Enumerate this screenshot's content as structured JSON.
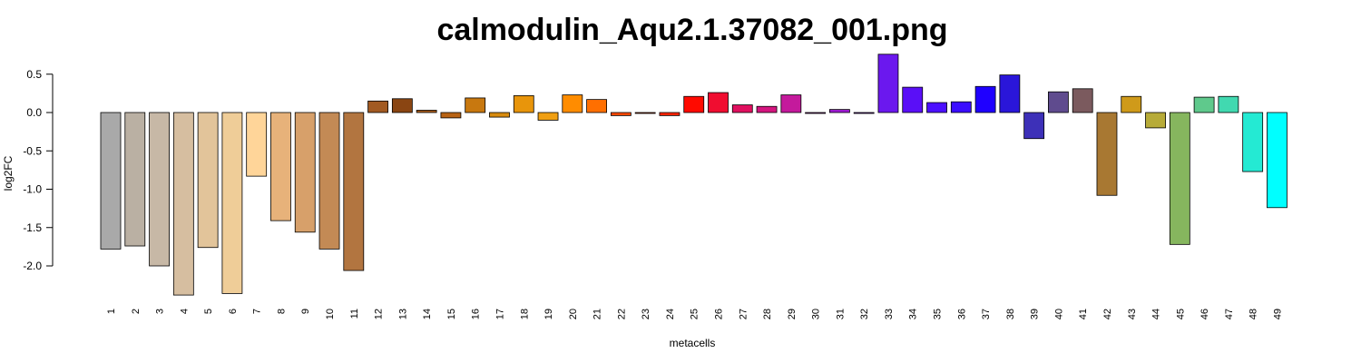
{
  "chart_data": {
    "type": "bar",
    "title": "calmodulin_Aqu2.1.37082_001.png",
    "xlabel": "metacells",
    "ylabel": "log2FC",
    "yticks": [
      "0.5",
      "0.0",
      "-0.5",
      "-1.0",
      "-1.5",
      "-2.0"
    ],
    "ytick_values": [
      0.5,
      0.0,
      -0.5,
      -1.0,
      -1.5,
      -2.0
    ],
    "ylim": [
      -2.4,
      0.77
    ],
    "grid": false,
    "categories": [
      "1",
      "2",
      "3",
      "4",
      "5",
      "6",
      "7",
      "8",
      "9",
      "10",
      "11",
      "12",
      "13",
      "14",
      "15",
      "16",
      "17",
      "18",
      "19",
      "20",
      "21",
      "22",
      "23",
      "24",
      "25",
      "26",
      "27",
      "28",
      "29",
      "30",
      "31",
      "32",
      "33",
      "34",
      "35",
      "36",
      "37",
      "38",
      "39",
      "40",
      "41",
      "42",
      "43",
      "44",
      "45",
      "46",
      "47",
      "48",
      "49"
    ],
    "values": [
      -1.78,
      -1.74,
      -2.0,
      -2.38,
      -1.76,
      -2.36,
      -0.83,
      -1.41,
      -1.56,
      -1.78,
      -2.06,
      0.15,
      0.18,
      0.03,
      -0.07,
      0.19,
      -0.06,
      0.22,
      -0.1,
      0.23,
      0.17,
      -0.04,
      -0.01,
      -0.04,
      0.21,
      0.26,
      0.1,
      0.08,
      0.23,
      -0.01,
      0.04,
      -0.01,
      0.76,
      0.33,
      0.13,
      0.14,
      0.34,
      0.49,
      -0.34,
      0.27,
      0.31,
      -1.08,
      0.21,
      -0.2,
      -1.72,
      0.2,
      0.21,
      -0.77,
      -1.24
    ],
    "colors": [
      "#a9a9a9",
      "#bab0a3",
      "#c7b8a6",
      "#d6bea0",
      "#e2c49a",
      "#efcd98",
      "#ffd599",
      "#e7b27a",
      "#d7a06a",
      "#c38a55",
      "#b27540",
      "#a25a22",
      "#8a4512",
      "#a85c1c",
      "#b86314",
      "#c8780f",
      "#d78b0f",
      "#e8950b",
      "#f09f12",
      "#ff8c00",
      "#ff6f00",
      "#ff4a00",
      "#f23800",
      "#ff2400",
      "#ff0a00",
      "#f00d30",
      "#e0105f",
      "#d4157f",
      "#c41a9c",
      "#b41eb8",
      "#9d1ad1",
      "#8617e3",
      "#6b18ee",
      "#5a0ff7",
      "#4c10ff",
      "#3a0cff",
      "#1f00ff",
      "#2a16d9",
      "#3d30b8",
      "#5f4b8e",
      "#7b5a5e",
      "#a87832",
      "#cf9a1a",
      "#b7ab38",
      "#86b65e",
      "#5fc98c",
      "#41d9b0",
      "#24ead3",
      "#00ffff"
    ]
  }
}
